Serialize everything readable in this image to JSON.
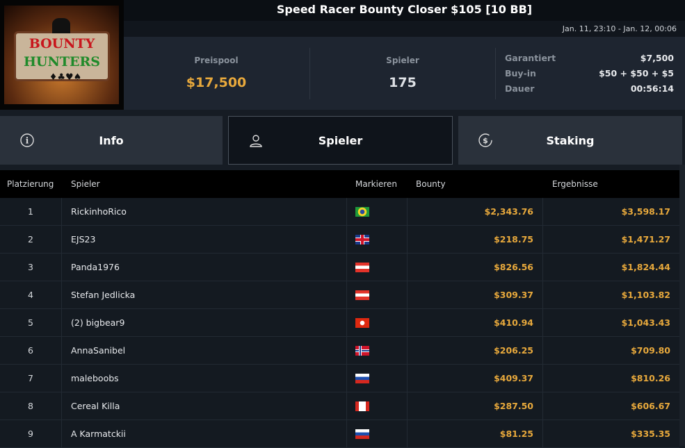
{
  "header": {
    "title": "Speed Racer Bounty Closer $105 [10 BB]",
    "date_range": "Jan. 11, 23:10 - Jan. 12, 00:06",
    "logo_text": [
      "BOUNTY",
      "HUNTERS"
    ]
  },
  "stats": {
    "prizepool_label": "Preispool",
    "prizepool": "$17,500",
    "players_label": "Spieler",
    "players": "175",
    "details": [
      {
        "label": "Garantiert",
        "value": "$7,500"
      },
      {
        "label": "Buy-in",
        "value": "$50 + $50 + $5"
      },
      {
        "label": "Dauer",
        "value": "00:56:14"
      }
    ]
  },
  "tabs": [
    {
      "label": "Info",
      "icon": "info-icon"
    },
    {
      "label": "Spieler",
      "icon": "user-icon",
      "active": true
    },
    {
      "label": "Staking",
      "icon": "dollar-coin-icon"
    }
  ],
  "table": {
    "columns": [
      "Platzierung",
      "Spieler",
      "Markieren",
      "Bounty",
      "Ergebnisse"
    ],
    "rows": [
      {
        "rank": "1",
        "name": "RickinhoRico",
        "flag": "brazil",
        "bounty": "$2,343.76",
        "result": "$3,598.17"
      },
      {
        "rank": "2",
        "name": "EJS23",
        "flag": "united-kingdom",
        "bounty": "$218.75",
        "result": "$1,471.27"
      },
      {
        "rank": "3",
        "name": "Panda1976",
        "flag": "austria",
        "bounty": "$826.56",
        "result": "$1,824.44"
      },
      {
        "rank": "4",
        "name": "Stefan Jedlicka",
        "flag": "austria",
        "bounty": "$309.37",
        "result": "$1,103.82"
      },
      {
        "rank": "5",
        "name": "(2) bigbear9",
        "flag": "hong-kong",
        "bounty": "$410.94",
        "result": "$1,043.43"
      },
      {
        "rank": "6",
        "name": "AnnaSanibel",
        "flag": "norway",
        "bounty": "$206.25",
        "result": "$709.80"
      },
      {
        "rank": "7",
        "name": "maleboobs",
        "flag": "russia",
        "bounty": "$409.37",
        "result": "$810.26"
      },
      {
        "rank": "8",
        "name": "Cereal Killa",
        "flag": "canada",
        "bounty": "$287.50",
        "result": "$606.67"
      },
      {
        "rank": "9",
        "name": "A Karmatckii",
        "flag": "russia",
        "bounty": "$81.25",
        "result": "$335.35"
      }
    ]
  },
  "colors": {
    "accent": "#e8a93c",
    "background": "#141a21"
  }
}
